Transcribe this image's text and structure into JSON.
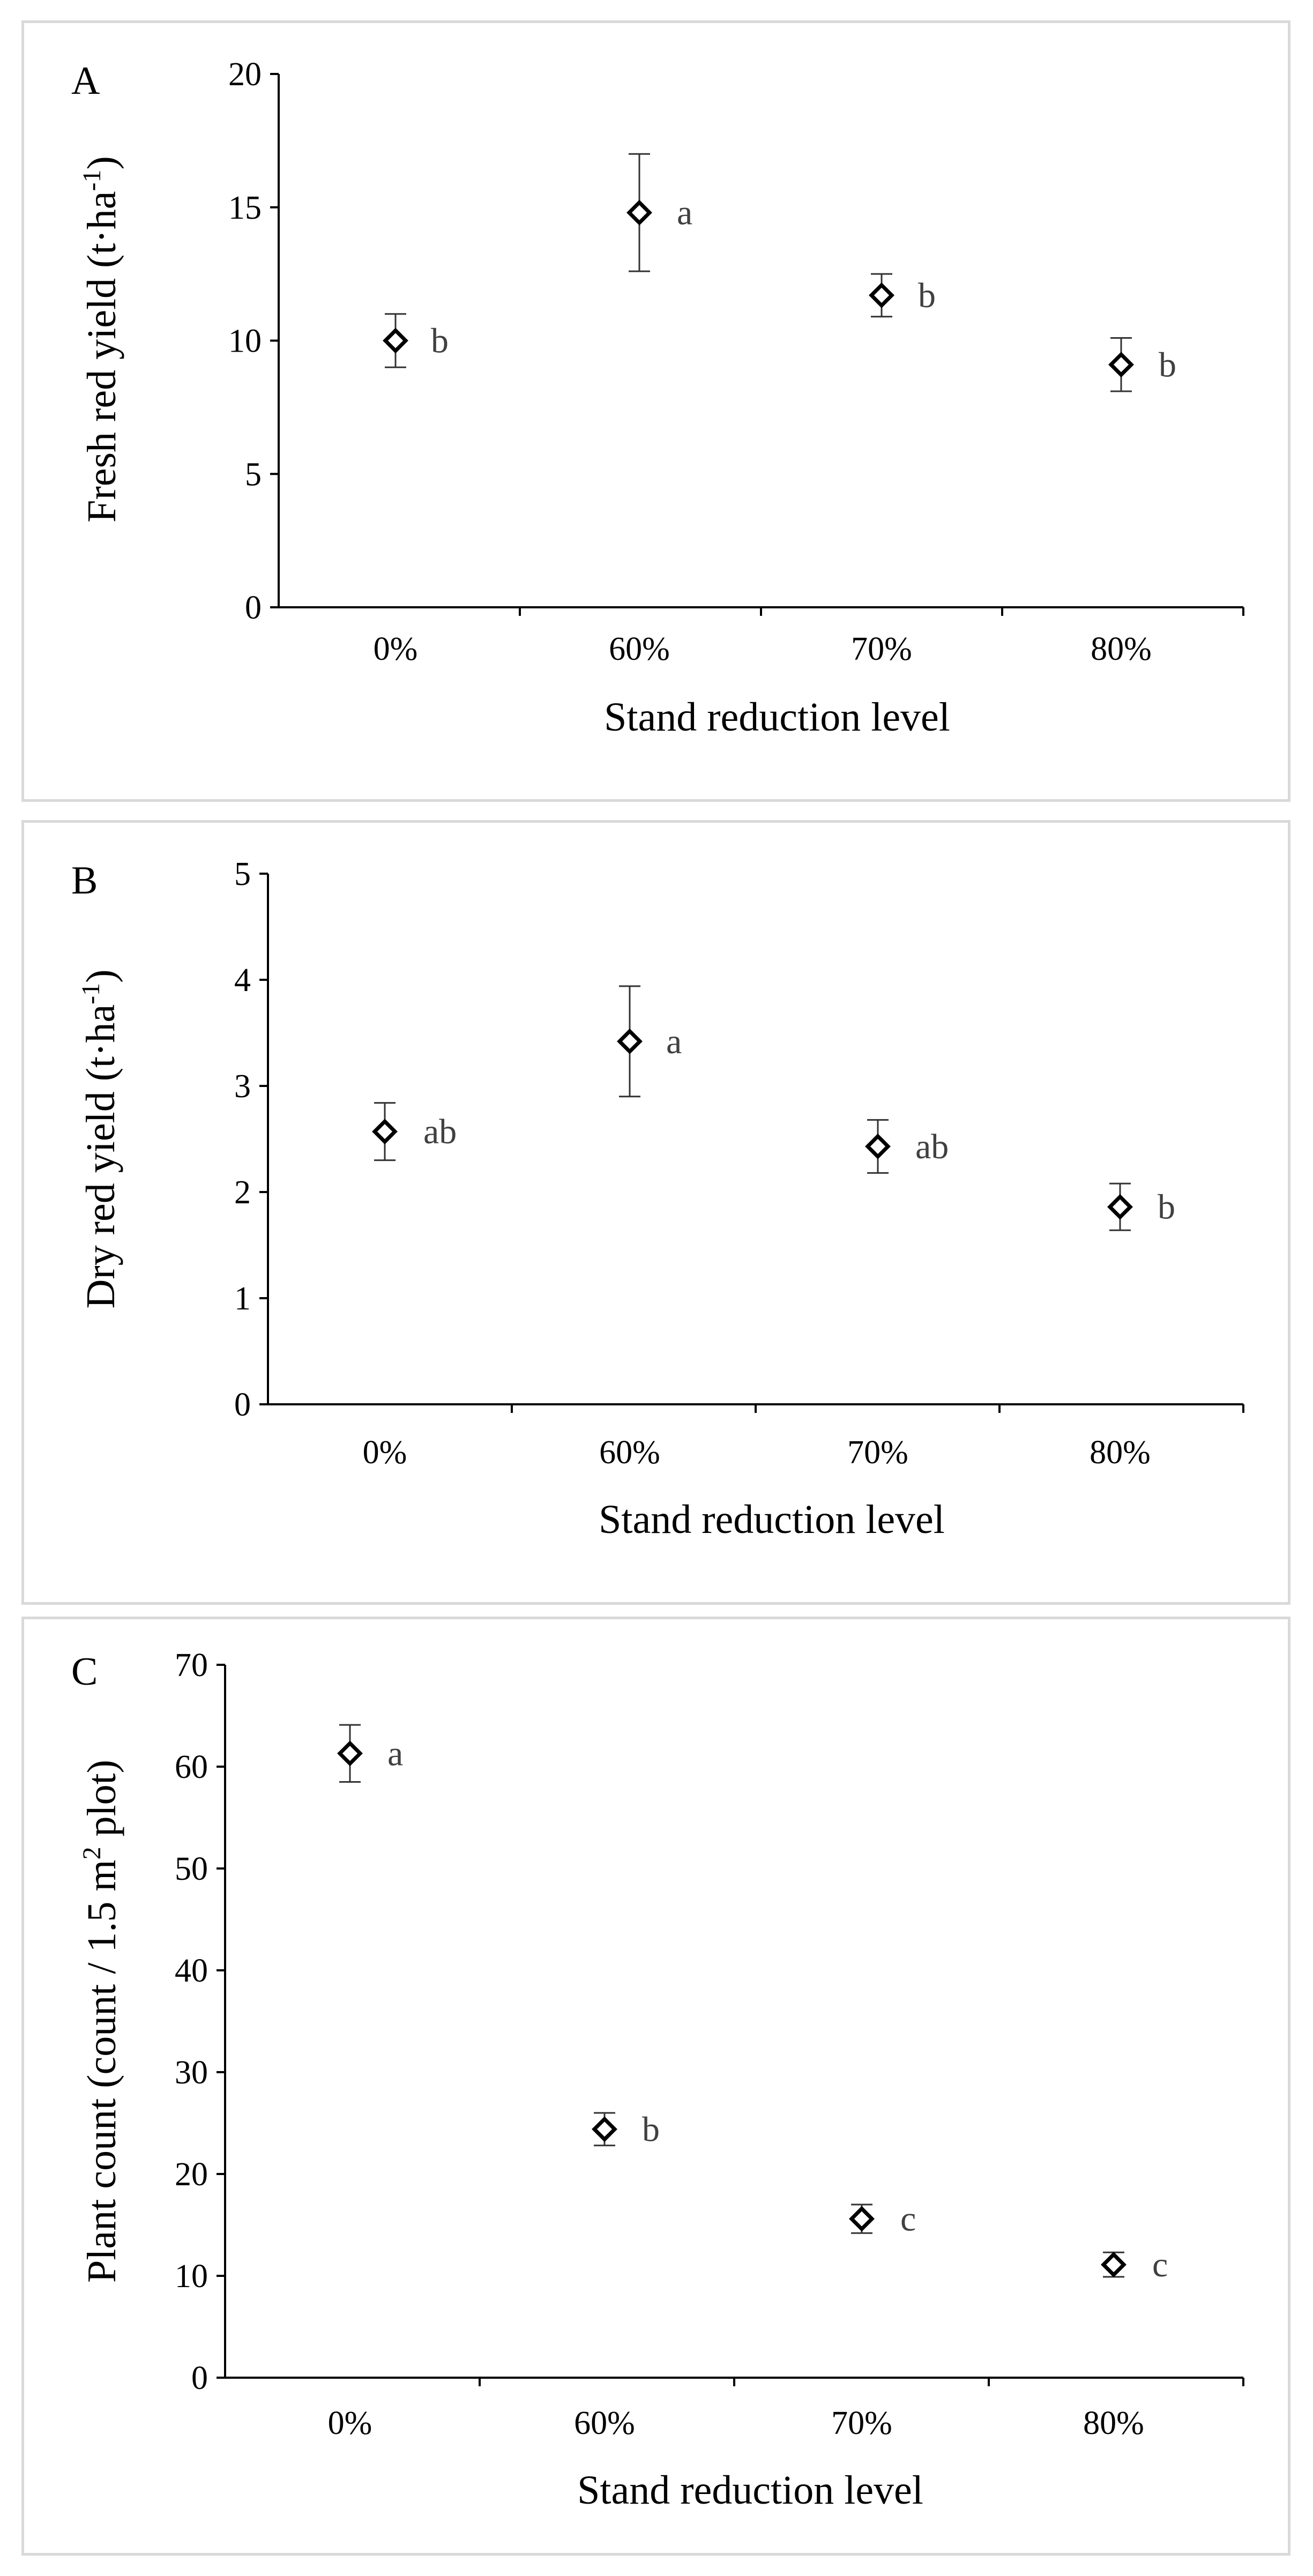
{
  "chart_data": [
    {
      "panel": "A",
      "type": "scatter",
      "categories": [
        "0%",
        "60%",
        "70%",
        "80%"
      ],
      "values": [
        10.0,
        14.8,
        11.7,
        9.1
      ],
      "errors": [
        1.0,
        2.2,
        0.8,
        1.0
      ],
      "significance": [
        "b",
        "a",
        "b",
        "b"
      ],
      "xlabel": "Stand reduction level",
      "ylabel_parts": [
        "Fresh red yield (t·ha",
        "-1",
        ")"
      ],
      "ylim": [
        0,
        20
      ],
      "yticks": [
        0,
        5,
        10,
        15,
        20
      ]
    },
    {
      "panel": "B",
      "type": "scatter",
      "categories": [
        "0%",
        "60%",
        "70%",
        "80%"
      ],
      "values": [
        2.57,
        3.42,
        2.43,
        1.86
      ],
      "errors": [
        0.27,
        0.52,
        0.25,
        0.22
      ],
      "significance": [
        "ab",
        "a",
        "ab",
        "b"
      ],
      "xlabel": "Stand reduction level",
      "ylabel_parts": [
        "Dry red yield (t·ha",
        "-1",
        ")"
      ],
      "ylim": [
        0,
        5
      ],
      "yticks": [
        0,
        1,
        2,
        3,
        4,
        5
      ]
    },
    {
      "panel": "C",
      "type": "scatter",
      "categories": [
        "0%",
        "60%",
        "70%",
        "80%"
      ],
      "values": [
        61.3,
        24.4,
        15.6,
        11.1
      ],
      "errors": [
        2.8,
        1.6,
        1.4,
        1.2
      ],
      "significance": [
        "a",
        "b",
        "c",
        "c"
      ],
      "xlabel": "Stand reduction level",
      "ylabel_parts": [
        "Plant count (count / 1.5 m",
        "2",
        " plot)"
      ],
      "ylim": [
        0,
        70
      ],
      "yticks": [
        0,
        10,
        20,
        30,
        40,
        50,
        60,
        70
      ]
    }
  ]
}
